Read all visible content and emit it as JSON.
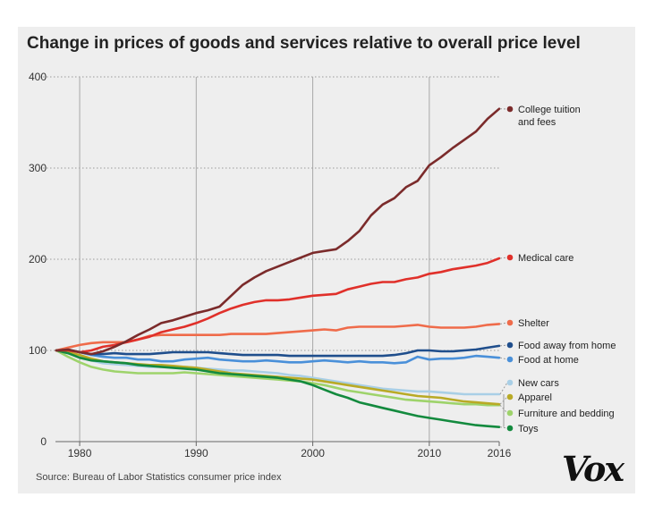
{
  "title": "Change in prices of goods and services relative to overall price level",
  "source": "Source: Bureau of Labor Statistics consumer price index",
  "logo": "Vox",
  "chart_data": {
    "type": "line",
    "title": "Change in prices of goods and services relative to overall price level",
    "xlabel": "",
    "ylabel": "",
    "xlim": [
      1978,
      2016
    ],
    "ylim": [
      0,
      400
    ],
    "xticks": [
      1980,
      1990,
      2000,
      2010,
      2016
    ],
    "xtick_labels": [
      "1980",
      "1990",
      "2000",
      "2010",
      "2016"
    ],
    "yticks": [
      0,
      100,
      200,
      300,
      400
    ],
    "ytick_labels": [
      "0",
      "100",
      "200",
      "300",
      "400"
    ],
    "grid": "y-dotted, x-solid at 1980/1990/2000/2010",
    "x": [
      1978,
      1979,
      1980,
      1981,
      1982,
      1983,
      1984,
      1985,
      1986,
      1987,
      1988,
      1989,
      1990,
      1991,
      1992,
      1993,
      1994,
      1995,
      1996,
      1997,
      1998,
      1999,
      2000,
      2001,
      2002,
      2003,
      2004,
      2005,
      2006,
      2007,
      2008,
      2009,
      2010,
      2011,
      2012,
      2013,
      2014,
      2015,
      2016
    ],
    "series": [
      {
        "name": "College tuition and fees",
        "color": "#7b2b2b",
        "values": [
          100,
          101,
          98,
          96,
          99,
          104,
          110,
          117,
          123,
          130,
          133,
          137,
          141,
          144,
          148,
          160,
          172,
          180,
          187,
          192,
          197,
          202,
          207,
          209,
          211,
          220,
          231,
          248,
          260,
          267,
          279,
          286,
          303,
          312,
          322,
          331,
          340,
          354,
          365
        ]
      },
      {
        "name": "Medical care",
        "color": "#e0302a",
        "values": [
          100,
          100,
          98,
          100,
          104,
          106,
          109,
          112,
          115,
          120,
          123,
          126,
          130,
          135,
          141,
          146,
          150,
          153,
          155,
          155,
          156,
          158,
          160,
          161,
          162,
          167,
          170,
          173,
          175,
          175,
          178,
          180,
          184,
          186,
          189,
          191,
          193,
          196,
          201
        ]
      },
      {
        "name": "Shelter",
        "color": "#ef6b4a",
        "values": [
          100,
          103,
          106,
          108,
          109,
          109,
          109,
          112,
          116,
          117,
          117,
          117,
          117,
          117,
          117,
          118,
          118,
          118,
          118,
          119,
          120,
          121,
          122,
          123,
          122,
          125,
          126,
          126,
          126,
          126,
          127,
          128,
          126,
          125,
          125,
          125,
          126,
          128,
          129
        ]
      },
      {
        "name": "Food away from home",
        "color": "#1f4e8c",
        "values": [
          100,
          101,
          98,
          96,
          96,
          97,
          96,
          96,
          96,
          97,
          98,
          98,
          98,
          98,
          97,
          96,
          95,
          95,
          95,
          95,
          94,
          94,
          94,
          94,
          94,
          94,
          94,
          94,
          94,
          95,
          97,
          100,
          100,
          99,
          99,
          100,
          101,
          103,
          105
        ]
      },
      {
        "name": "Food at home",
        "color": "#4a90d9",
        "values": [
          100,
          101,
          98,
          95,
          93,
          92,
          92,
          90,
          90,
          88,
          88,
          90,
          91,
          92,
          90,
          89,
          88,
          88,
          89,
          88,
          87,
          87,
          88,
          89,
          88,
          87,
          88,
          87,
          87,
          86,
          87,
          93,
          90,
          91,
          91,
          92,
          94,
          93,
          92
        ]
      },
      {
        "name": "New cars",
        "color": "#a9cfe6",
        "values": [
          100,
          97,
          93,
          89,
          86,
          85,
          84,
          83,
          82,
          82,
          82,
          82,
          81,
          80,
          79,
          78,
          78,
          77,
          76,
          75,
          73,
          72,
          70,
          68,
          66,
          64,
          62,
          60,
          58,
          57,
          56,
          55,
          55,
          54,
          53,
          52,
          52,
          52,
          52
        ]
      },
      {
        "name": "Apparel",
        "color": "#b9aa26",
        "values": [
          100,
          98,
          95,
          91,
          88,
          87,
          86,
          85,
          84,
          84,
          83,
          82,
          81,
          79,
          77,
          75,
          74,
          73,
          72,
          71,
          70,
          69,
          68,
          66,
          64,
          62,
          60,
          58,
          56,
          54,
          52,
          50,
          49,
          48,
          46,
          44,
          43,
          42,
          41
        ]
      },
      {
        "name": "Furniture and bedding",
        "color": "#9ed36b",
        "values": [
          100,
          93,
          87,
          82,
          79,
          77,
          76,
          75,
          75,
          75,
          75,
          76,
          75,
          74,
          73,
          72,
          71,
          70,
          69,
          68,
          67,
          66,
          64,
          62,
          59,
          56,
          54,
          52,
          50,
          48,
          46,
          45,
          44,
          43,
          42,
          41,
          41,
          40,
          40
        ]
      },
      {
        "name": "Toys",
        "color": "#138a3e",
        "values": [
          100,
          97,
          92,
          89,
          88,
          87,
          86,
          84,
          83,
          82,
          81,
          80,
          79,
          77,
          75,
          74,
          73,
          72,
          71,
          70,
          68,
          66,
          62,
          57,
          52,
          48,
          43,
          40,
          37,
          34,
          31,
          28,
          26,
          24,
          22,
          20,
          18,
          17,
          16
        ]
      }
    ],
    "legend": [
      {
        "text": "College tuition",
        "text2": "and fees",
        "series": 0
      },
      {
        "text": "Medical care",
        "text2": "",
        "series": 1
      },
      {
        "text": "Shelter",
        "text2": "",
        "series": 2
      },
      {
        "text": "Food away from home",
        "text2": "",
        "series": 3
      },
      {
        "text": "Food at home",
        "text2": "",
        "series": 4
      },
      {
        "text": "New cars",
        "text2": "",
        "series": 5
      },
      {
        "text": "Apparel",
        "text2": "",
        "series": 6
      },
      {
        "text": "Furniture and bedding",
        "text2": "",
        "series": 7
      },
      {
        "text": "Toys",
        "text2": "",
        "series": 8
      }
    ]
  }
}
